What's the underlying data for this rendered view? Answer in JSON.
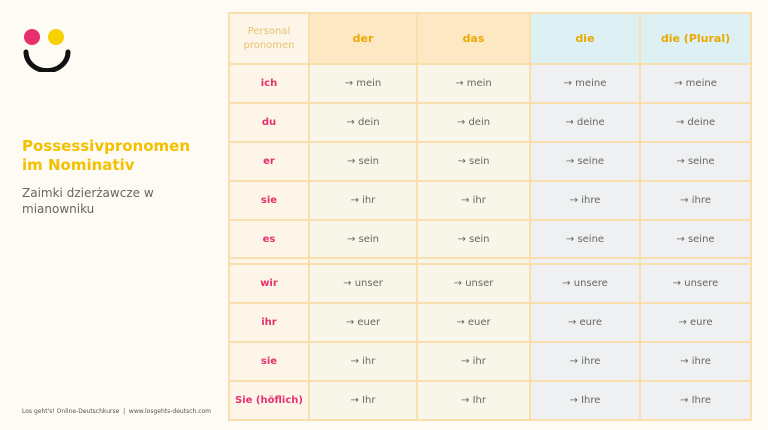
{
  "sidebar": {
    "title": "Possessivpronomen im Nominativ",
    "subtitle": "Zaimki dzierżawcze w mianowniku",
    "footer": "Los geht's! Online-Deutschkurse  |  www.losgehts-deutsch.com"
  },
  "table": {
    "header": [
      "Personal pronomen",
      "der",
      "das",
      "die",
      "die (Plural)"
    ],
    "rows": [
      [
        "ich",
        "→ mein",
        "→ mein",
        "→ meine",
        "→ meine"
      ],
      [
        "du",
        "→ dein",
        "→ dein",
        "→ deine",
        "→ deine"
      ],
      [
        "er",
        "→ sein",
        "→ sein",
        "→ seine",
        "→ seine"
      ],
      [
        "sie",
        "→ ihr",
        "→ ihr",
        "→ ihre",
        "→ ihre"
      ],
      [
        "es",
        "→ sein",
        "→ sein",
        "→ seine",
        "→ seine"
      ],
      [
        "wir",
        "→ unser",
        "→ unser",
        "→ unsere",
        "→ unsere"
      ],
      [
        "ihr",
        "→ euer",
        "→ euer",
        "→ eure",
        "→ eure"
      ],
      [
        "sie",
        "→ ihr",
        "→ ihr",
        "→ ihre",
        "→ ihre"
      ],
      [
        "Sie (höflich)",
        "→ Ihr",
        "→ Ihr",
        "→ Ihre",
        "→ Ihre"
      ]
    ]
  }
}
